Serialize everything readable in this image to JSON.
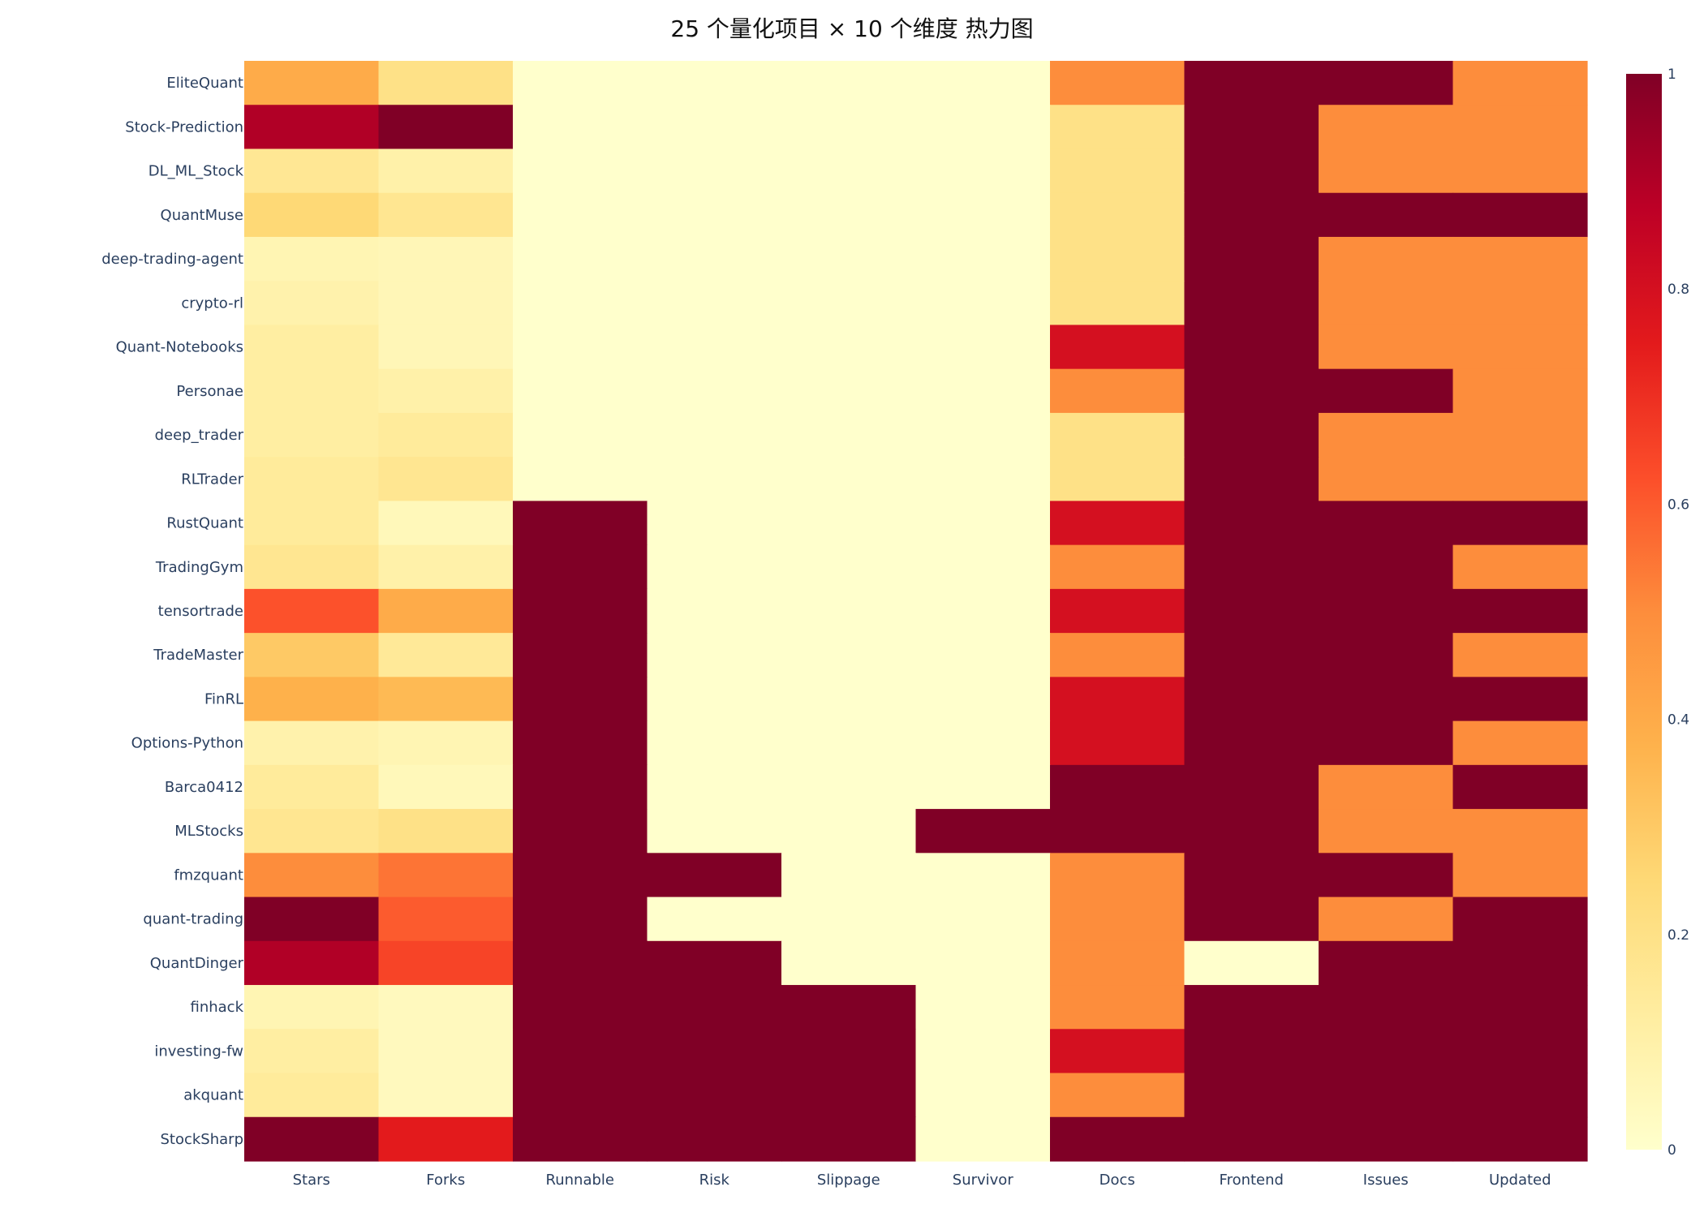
{
  "chart_data": {
    "type": "heatmap",
    "title": "25 个量化项目 × 10 个维度 热力图",
    "x": [
      "Stars",
      "Forks",
      "Runnable",
      "Risk",
      "Slippage",
      "Survivor",
      "Docs",
      "Frontend",
      "Issues",
      "Updated"
    ],
    "y": [
      "EliteQuant",
      "Stock-Prediction",
      "DL_ML_Stock",
      "QuantMuse",
      "deep-trading-agent",
      "crypto-rl",
      "Quant-Notebooks",
      "Personae",
      "deep_trader",
      "RLTrader",
      "RustQuant",
      "TradingGym",
      "tensortrade",
      "TradeMaster",
      "FinRL",
      "Options-Python",
      "Barca0412",
      "MLStocks",
      "fmzquant",
      "quant-trading",
      "QuantDinger",
      "finhack",
      "investing-fw",
      "akquant",
      "StockSharp"
    ],
    "z": [
      [
        0.4,
        0.2,
        0,
        0,
        0,
        0,
        0.5,
        1,
        1,
        0.5
      ],
      [
        0.9,
        1.0,
        0,
        0,
        0,
        0,
        0.2,
        1,
        0.5,
        0.5
      ],
      [
        0.16,
        0.1,
        0,
        0,
        0,
        0,
        0.2,
        1,
        0.5,
        0.5
      ],
      [
        0.25,
        0.17,
        0,
        0,
        0,
        0,
        0.2,
        1,
        1,
        1
      ],
      [
        0.07,
        0.06,
        0,
        0,
        0,
        0,
        0.2,
        1,
        0.5,
        0.5
      ],
      [
        0.09,
        0.06,
        0,
        0,
        0,
        0,
        0.2,
        1,
        0.5,
        0.5
      ],
      [
        0.12,
        0.06,
        0,
        0,
        0,
        0,
        0.8,
        1,
        0.5,
        0.5
      ],
      [
        0.12,
        0.1,
        0,
        0,
        0,
        0,
        0.5,
        1,
        1,
        0.5
      ],
      [
        0.12,
        0.14,
        0,
        0,
        0,
        0,
        0.2,
        1,
        0.5,
        0.5
      ],
      [
        0.14,
        0.17,
        0,
        0,
        0,
        0,
        0.2,
        1,
        0.5,
        0.5
      ],
      [
        0.14,
        0.05,
        1,
        0,
        0,
        0,
        0.8,
        1,
        1,
        1
      ],
      [
        0.17,
        0.1,
        1,
        0,
        0,
        0,
        0.5,
        1,
        1,
        0.5
      ],
      [
        0.62,
        0.4,
        1,
        0,
        0,
        0,
        0.8,
        1,
        1,
        1
      ],
      [
        0.3,
        0.15,
        1,
        0,
        0,
        0,
        0.5,
        1,
        1,
        0.5
      ],
      [
        0.38,
        0.35,
        1,
        0,
        0,
        0,
        0.8,
        1,
        1,
        1
      ],
      [
        0.09,
        0.07,
        1,
        0,
        0,
        0,
        0.8,
        1,
        1,
        0.5
      ],
      [
        0.14,
        0.05,
        1,
        0,
        0,
        0,
        1,
        1,
        0.5,
        1
      ],
      [
        0.17,
        0.2,
        1,
        0,
        0,
        1,
        1,
        1,
        0.5,
        0.5
      ],
      [
        0.5,
        0.55,
        1,
        1,
        0,
        0,
        0.5,
        1,
        1,
        0.5
      ],
      [
        1.0,
        0.6,
        1,
        0,
        0,
        0,
        0.5,
        1,
        0.5,
        1
      ],
      [
        0.9,
        0.65,
        1,
        1,
        0,
        0,
        0.5,
        0,
        1,
        1
      ],
      [
        0.07,
        0.04,
        1,
        1,
        1,
        0,
        0.5,
        1,
        1,
        1
      ],
      [
        0.12,
        0.04,
        1,
        1,
        1,
        0,
        0.8,
        1,
        1,
        1
      ],
      [
        0.14,
        0.04,
        1,
        1,
        1,
        0,
        0.5,
        1,
        1,
        1
      ],
      [
        1.0,
        0.75,
        1,
        1,
        1,
        0,
        1,
        1,
        1,
        1
      ]
    ],
    "zlim": [
      0,
      1
    ],
    "colorscale": "YlOrRd",
    "colorbar": {
      "ticks": [
        0,
        0.2,
        0.4,
        0.6,
        0.8,
        1
      ],
      "tick_labels": [
        "0",
        "0.2",
        "0.4",
        "0.6",
        "0.8",
        "1"
      ]
    },
    "grid": false,
    "legend": "colorbar-right"
  },
  "colors": {
    "colorscale_stops": [
      "#ffffcc",
      "#ffeda0",
      "#fed976",
      "#feb24c",
      "#fd8d3c",
      "#fc4e2a",
      "#e31a1c",
      "#bd0026",
      "#800026"
    ],
    "axis_text": "#2a3f5f",
    "title_text": "#111111"
  }
}
